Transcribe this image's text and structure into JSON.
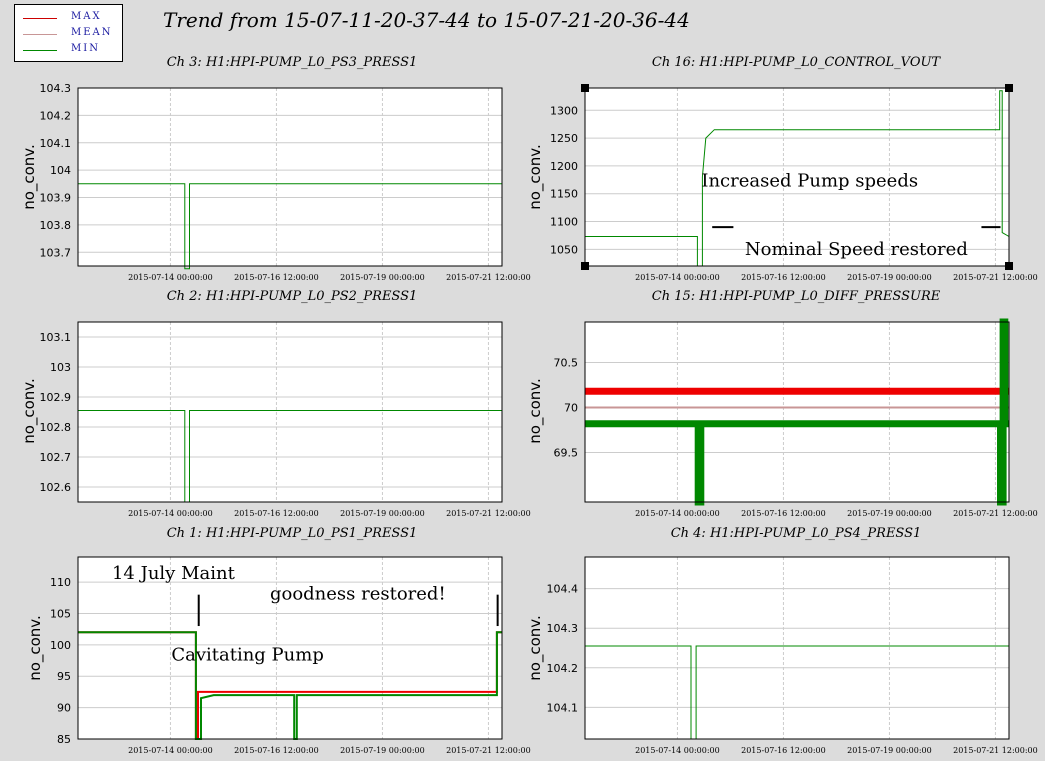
{
  "legend": [
    {
      "label": "MAX",
      "color": "#cc0000"
    },
    {
      "label": "MEAN",
      "color": "#c89696"
    },
    {
      "label": "MIN",
      "color": "#008800"
    }
  ],
  "title": "Trend from 15-07-11-20-37-44 to 15-07-21-20-36-44",
  "colors": {
    "max": "#ee0000",
    "mean": "#c89696",
    "min": "#008800",
    "grid": "#cccccc"
  },
  "chart_data": [
    {
      "type": "line",
      "id": "ch3",
      "title": "Ch 3: H1:HPI-PUMP_L0_PS3_PRESS1",
      "ylabel": "no_conv.",
      "x_range": [
        "2015-07-11 20:37:44",
        "2015-07-21 20:36:44"
      ],
      "x_ticks": [
        "2015-07-14 00:00:00",
        "2015-07-16 12:00:00",
        "2015-07-19 00:00:00",
        "2015-07-21 12:00:00"
      ],
      "ylim": [
        103.65,
        104.3
      ],
      "y_ticks": [
        103.7,
        103.8,
        103.9,
        104,
        104.1,
        104.2,
        104.3
      ],
      "series": [
        {
          "values": [
            [
              0,
              103.95
            ],
            [
              2.52,
              103.95
            ],
            [
              2.52,
              103.64
            ],
            [
              2.63,
              103.64
            ],
            [
              2.63,
              103.95
            ],
            [
              10,
              103.95
            ]
          ]
        }
      ]
    },
    {
      "type": "line",
      "id": "ch16",
      "title": "Ch 16: H1:HPI-PUMP_L0_CONTROL_VOUT",
      "ylabel": "no_conv.",
      "x_range": [
        "2015-07-11 20:37:44",
        "2015-07-21 20:36:44"
      ],
      "x_ticks": [
        "2015-07-14 00:00:00",
        "2015-07-16 12:00:00",
        "2015-07-19 00:00:00",
        "2015-07-21 12:00:00"
      ],
      "ylim": [
        1020,
        1340
      ],
      "y_ticks": [
        1050,
        1100,
        1150,
        1200,
        1250,
        1300
      ],
      "annotations": [
        {
          "text": "Increased Pump speeds",
          "x": 5.3,
          "y": 1163
        },
        {
          "text": "Nominal Speed restored",
          "x": 6.4,
          "y": 1040
        }
      ],
      "series": [
        {
          "values": [
            [
              0,
              1073
            ],
            [
              2.65,
              1073
            ],
            [
              2.65,
              1020
            ],
            [
              2.77,
              1020
            ],
            [
              2.77,
              1180
            ],
            [
              2.85,
              1250
            ],
            [
              3.05,
              1265
            ],
            [
              9.6,
              1265
            ],
            [
              9.78,
              1265
            ],
            [
              9.78,
              1335
            ],
            [
              9.84,
              1335
            ],
            [
              9.84,
              1080
            ],
            [
              10,
              1073
            ]
          ]
        }
      ]
    },
    {
      "type": "line",
      "id": "ch2",
      "title": "Ch 2: H1:HPI-PUMP_L0_PS2_PRESS1",
      "ylabel": "no_conv.",
      "x_range": [
        "2015-07-11 20:37:44",
        "2015-07-21 20:36:44"
      ],
      "x_ticks": [
        "2015-07-14 00:00:00",
        "2015-07-16 12:00:00",
        "2015-07-19 00:00:00",
        "2015-07-21 12:00:00"
      ],
      "ylim": [
        102.55,
        103.15
      ],
      "y_ticks": [
        102.6,
        102.7,
        102.8,
        102.9,
        103,
        103.1
      ],
      "series": [
        {
          "values": [
            [
              0,
              102.855
            ],
            [
              2.52,
              102.855
            ],
            [
              2.52,
              102.55
            ],
            [
              2.63,
              102.55
            ],
            [
              2.63,
              102.855
            ],
            [
              10,
              102.855
            ]
          ]
        }
      ]
    },
    {
      "type": "line",
      "id": "ch15",
      "title": "Ch 15: H1:HPI-PUMP_L0_DIFF_PRESSURE",
      "ylabel": "no_conv.",
      "x_range": [
        "2015-07-11 20:37:44",
        "2015-07-21 20:36:44"
      ],
      "x_ticks": [
        "2015-07-14 00:00:00",
        "2015-07-16 12:00:00",
        "2015-07-19 00:00:00",
        "2015-07-21 12:00:00"
      ],
      "ylim": [
        68.95,
        70.95
      ],
      "y_ticks": [
        69.5,
        70,
        70.5
      ],
      "series": [
        {
          "values": [
            [
              0,
              70.18
            ],
            [
              10,
              70.18
            ]
          ]
        },
        {
          "values": [
            [
              0,
              70.0
            ],
            [
              10,
              70.0
            ]
          ]
        },
        {
          "values": [
            [
              0,
              69.82
            ],
            [
              2.67,
              69.82
            ],
            [
              2.67,
              68.95
            ],
            [
              2.73,
              68.95
            ],
            [
              2.73,
              69.82
            ],
            [
              9.8,
              69.82
            ],
            [
              9.8,
              68.95
            ],
            [
              9.86,
              68.95
            ],
            [
              9.86,
              70.95
            ],
            [
              9.9,
              70.95
            ],
            [
              9.9,
              69.82
            ],
            [
              10,
              69.82
            ]
          ]
        }
      ]
    },
    {
      "type": "line",
      "id": "ch1",
      "title": "Ch 1: H1:HPI-PUMP_L0_PS1_PRESS1",
      "ylabel": "no_conv.",
      "x_range": [
        "2015-07-11 20:37:44",
        "2015-07-21 20:36:44"
      ],
      "x_ticks": [
        "2015-07-14 00:00:00",
        "2015-07-16 12:00:00",
        "2015-07-19 00:00:00",
        "2015-07-21 12:00:00"
      ],
      "ylim": [
        85,
        114
      ],
      "y_ticks": [
        85,
        90,
        95,
        100,
        105,
        110
      ],
      "annotations": [
        {
          "text": "14 July Maint",
          "x": 2.25,
          "y": 110.5
        },
        {
          "text": "goodness restored!",
          "x": 6.6,
          "y": 107.2
        },
        {
          "text": "Cavitating Pump",
          "x": 4.0,
          "y": 97.5
        }
      ],
      "series": [
        {
          "values": [
            [
              0,
              102
            ],
            [
              2.78,
              102
            ],
            [
              2.78,
              85
            ],
            [
              2.83,
              85
            ],
            [
              2.83,
              92.5
            ],
            [
              9.88,
              92.5
            ],
            [
              9.88,
              102
            ],
            [
              10,
              102
            ]
          ]
        },
        {
          "values": [
            [
              0,
              102
            ],
            [
              2.78,
              102
            ],
            [
              2.78,
              85
            ],
            [
              2.9,
              85
            ],
            [
              2.9,
              91.5
            ],
            [
              3.2,
              92
            ],
            [
              5.1,
              92
            ],
            [
              5.1,
              85
            ],
            [
              5.16,
              85
            ],
            [
              5.16,
              92
            ],
            [
              9.88,
              92
            ],
            [
              9.88,
              102
            ],
            [
              10,
              102
            ]
          ]
        }
      ]
    },
    {
      "type": "line",
      "id": "ch4",
      "title": "Ch 4: H1:HPI-PUMP_L0_PS4_PRESS1",
      "ylabel": "no_conv.",
      "x_range": [
        "2015-07-11 20:37:44",
        "2015-07-21 20:36:44"
      ],
      "x_ticks": [
        "2015-07-14 00:00:00",
        "2015-07-16 12:00:00",
        "2015-07-19 00:00:00",
        "2015-07-21 12:00:00"
      ],
      "ylim": [
        104.02,
        104.48
      ],
      "y_ticks": [
        104.1,
        104.2,
        104.3,
        104.4
      ],
      "series": [
        {
          "values": [
            [
              0,
              104.255
            ],
            [
              2.5,
              104.255
            ],
            [
              2.5,
              104.02
            ],
            [
              2.62,
              104.02
            ],
            [
              2.62,
              104.255
            ],
            [
              10,
              104.255
            ]
          ]
        }
      ]
    }
  ]
}
